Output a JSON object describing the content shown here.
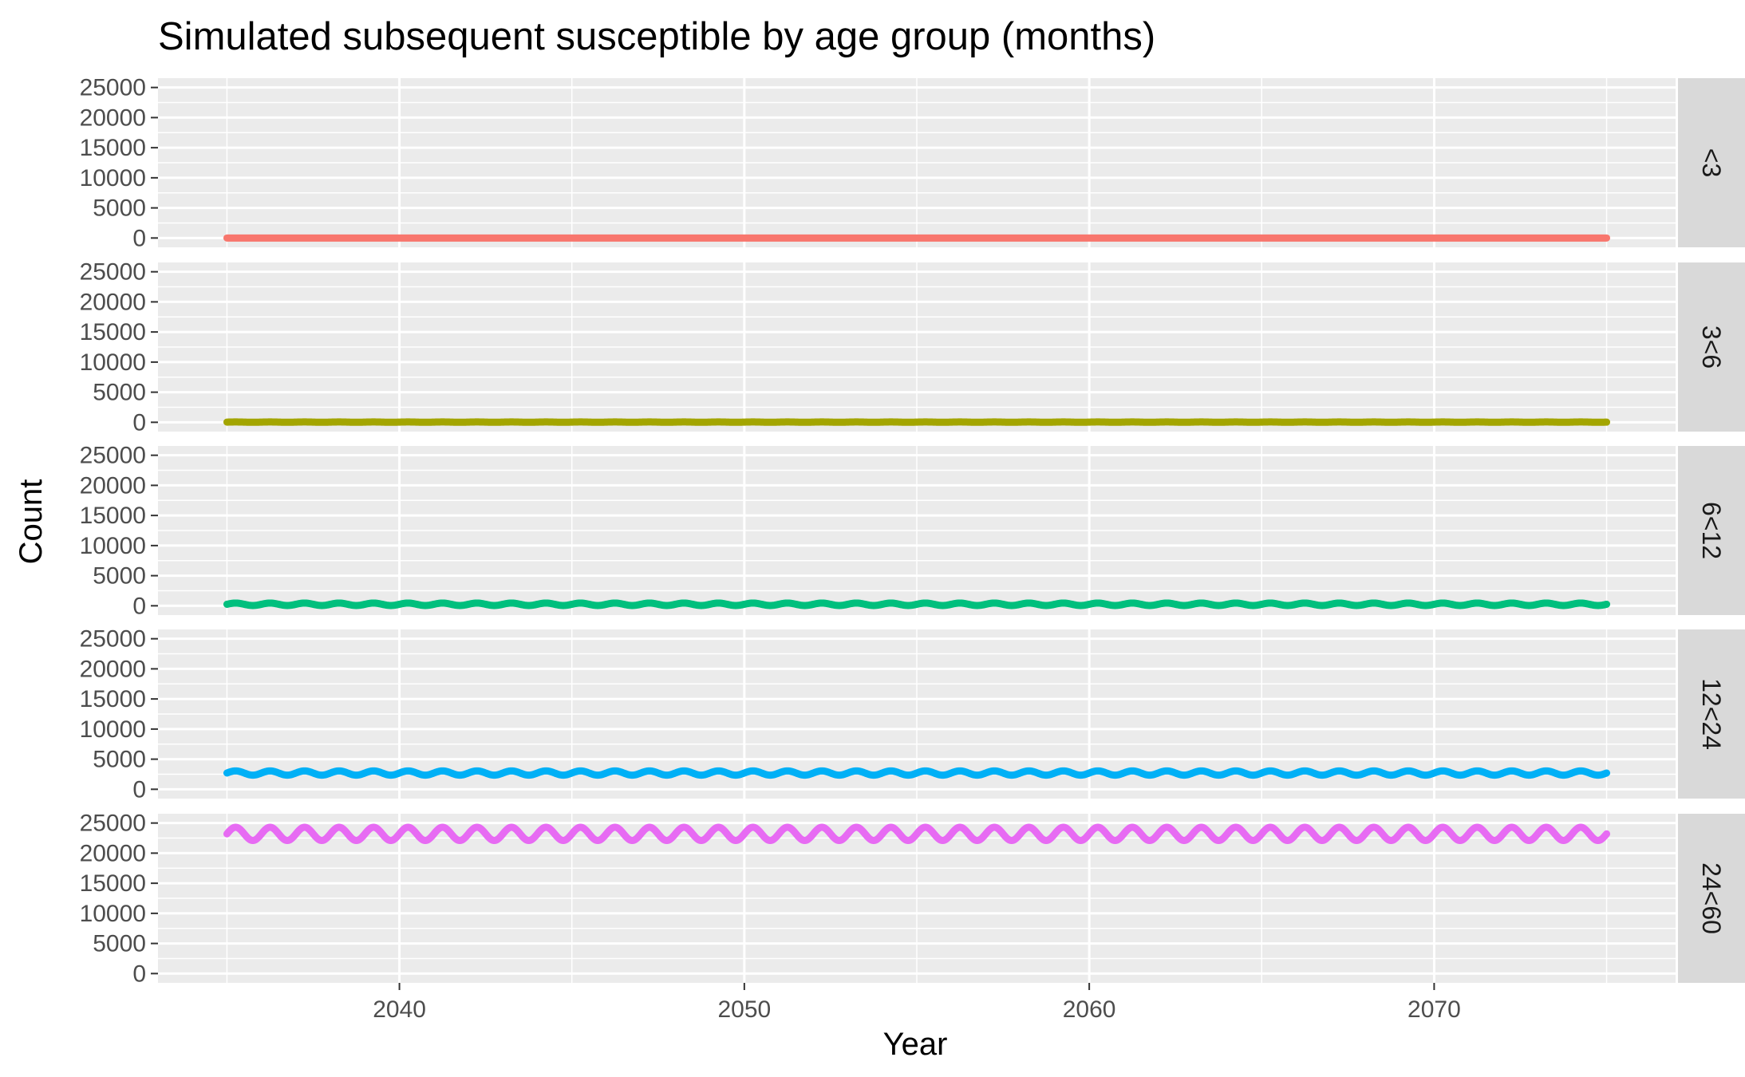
{
  "chart_data": {
    "type": "line",
    "title": "Simulated subsequent susceptible by age group (months)",
    "xlabel": "Year",
    "ylabel": "Count",
    "xlim": [
      2033,
      2077
    ],
    "x_ticks": [
      2040,
      2050,
      2060,
      2070
    ],
    "ylim": [
      0,
      25000
    ],
    "y_ticks": [
      0,
      5000,
      10000,
      15000,
      20000,
      25000
    ],
    "grid": true,
    "facet": "rows",
    "legend": "none",
    "x_start": 2035,
    "x_end": 2075,
    "series": [
      {
        "name": "<3",
        "color": "#F8766D",
        "mean": 0,
        "amplitude": 0,
        "period_years": 1
      },
      {
        "name": "3<6",
        "color": "#A3A500",
        "mean": 30,
        "amplitude": 25,
        "period_years": 1
      },
      {
        "name": "6<12",
        "color": "#00BF7D",
        "mean": 250,
        "amplitude": 200,
        "period_years": 1
      },
      {
        "name": "12<24",
        "color": "#00B0F6",
        "mean": 2700,
        "amplitude": 350,
        "period_years": 1
      },
      {
        "name": "24<60",
        "color": "#E76BF3",
        "mean": 23200,
        "amplitude": 1100,
        "period_years": 1
      }
    ]
  }
}
